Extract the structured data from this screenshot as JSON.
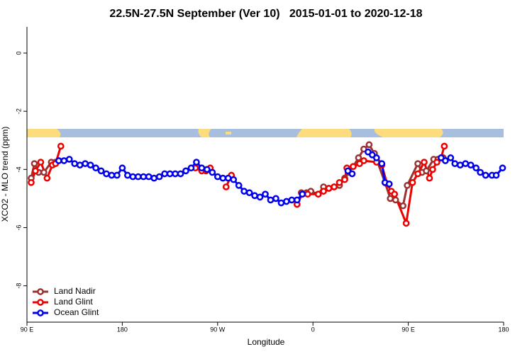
{
  "chart_data": {
    "type": "line",
    "title": "22.5N-27.5N September (Ver 10)   2015-01-01 to 2020-12-18",
    "xlabel": "Longitude",
    "ylabel": "XCO2 - MLO trend (ppm)",
    "xlim": [
      90,
      540
    ],
    "ylim": [
      -9.25,
      0.9
    ],
    "xticks": [
      {
        "value": 90,
        "label": "90 E"
      },
      {
        "value": 180,
        "label": "180"
      },
      {
        "value": 270,
        "label": "90 W"
      },
      {
        "value": 360,
        "label": "0"
      },
      {
        "value": 450,
        "label": "90 E"
      },
      {
        "value": 540,
        "label": "180"
      }
    ],
    "yticks": [
      0,
      -2,
      -4,
      -6,
      -8
    ],
    "legend": "bottomleft",
    "series": [
      {
        "name": "Land Nadir",
        "color": "#993333",
        "x": [
          94,
          97,
          101,
          106,
          113,
          117,
          null,
          349,
          354,
          358,
          365,
          370,
          375,
          380,
          385,
          390,
          394,
          398,
          403,
          408,
          413,
          418,
          428,
          433,
          438,
          445,
          449,
          459,
          463,
          467,
          474,
          478,
          483
        ],
        "values": [
          -4.3,
          -3.8,
          -4.1,
          -4.1,
          -3.75,
          -3.75,
          null,
          -4.8,
          -4.8,
          -4.75,
          -4.85,
          -4.6,
          -4.65,
          -4.6,
          -4.55,
          -4.3,
          -4.1,
          -3.9,
          -3.6,
          -3.3,
          -3.15,
          -3.45,
          -4.45,
          -5.0,
          -5.05,
          -5.25,
          -4.55,
          -3.8,
          -4.1,
          -4.05,
          -3.65,
          -3.65,
          -3.6
        ]
      },
      {
        "name": "Land Glint",
        "color": "#ee0000",
        "x": [
          94,
          98,
          103,
          109,
          114,
          117,
          122,
          null,
          249,
          255,
          259,
          263,
          null,
          278,
          283,
          null,
          345,
          350,
          355,
          365,
          370,
          375,
          380,
          385,
          390,
          392,
          398,
          404,
          408,
          420,
          425,
          430,
          434,
          437,
          448,
          454,
          459,
          465,
          470,
          473,
          477,
          481,
          484
        ],
        "values": [
          -4.45,
          -4.05,
          -3.75,
          -4.3,
          -3.85,
          -3.8,
          -3.2,
          null,
          -3.95,
          -4.05,
          -4.05,
          -3.95,
          null,
          -4.6,
          -4.2,
          null,
          -5.2,
          -4.85,
          -4.85,
          -4.85,
          -4.75,
          -4.65,
          -4.6,
          -4.45,
          -4.35,
          -3.95,
          -3.9,
          -3.8,
          -3.7,
          -3.75,
          -3.85,
          -4.5,
          -4.75,
          -4.85,
          -5.85,
          -4.45,
          -4.15,
          -3.75,
          -4.3,
          -4.0,
          -3.75,
          -3.6,
          -3.2
        ]
      },
      {
        "name": "Ocean Glint",
        "color": "#0000ee",
        "x": [
          120,
          125,
          130,
          135,
          140,
          145,
          150,
          155,
          160,
          165,
          170,
          175,
          180,
          185,
          190,
          195,
          200,
          205,
          210,
          215,
          220,
          225,
          230,
          235,
          240,
          245,
          250,
          255,
          260,
          265,
          270,
          275,
          280,
          285,
          290,
          295,
          300,
          305,
          310,
          315,
          320,
          325,
          330,
          335,
          340,
          345,
          350,
          null,
          393,
          397,
          null,
          412,
          416,
          420,
          425,
          428,
          432,
          null,
          481,
          485,
          490,
          494,
          499,
          504,
          509,
          514,
          518,
          523,
          529,
          533,
          539
        ],
        "values": [
          -3.7,
          -3.7,
          -3.65,
          -3.8,
          -3.85,
          -3.8,
          -3.85,
          -3.95,
          -4.05,
          -4.15,
          -4.2,
          -4.2,
          -3.95,
          -4.2,
          -4.25,
          -4.25,
          -4.25,
          -4.25,
          -4.3,
          -4.25,
          -4.15,
          -4.15,
          -4.15,
          -4.15,
          -4.05,
          -3.95,
          -3.75,
          -3.95,
          -4.0,
          -4.1,
          -4.25,
          -4.3,
          -4.3,
          -4.35,
          -4.55,
          -4.75,
          -4.8,
          -4.9,
          -4.95,
          -4.85,
          -5.05,
          -5.0,
          -5.15,
          -5.1,
          -5.05,
          -5.05,
          -4.85,
          null,
          -4.05,
          -4.15,
          null,
          -3.4,
          -3.5,
          -3.6,
          -3.8,
          -4.45,
          -4.5,
          null,
          -3.6,
          -3.7,
          -3.6,
          -3.8,
          -3.85,
          -3.8,
          -3.85,
          -3.95,
          -4.1,
          -4.2,
          -4.2,
          -4.2,
          -3.95
        ]
      }
    ]
  }
}
